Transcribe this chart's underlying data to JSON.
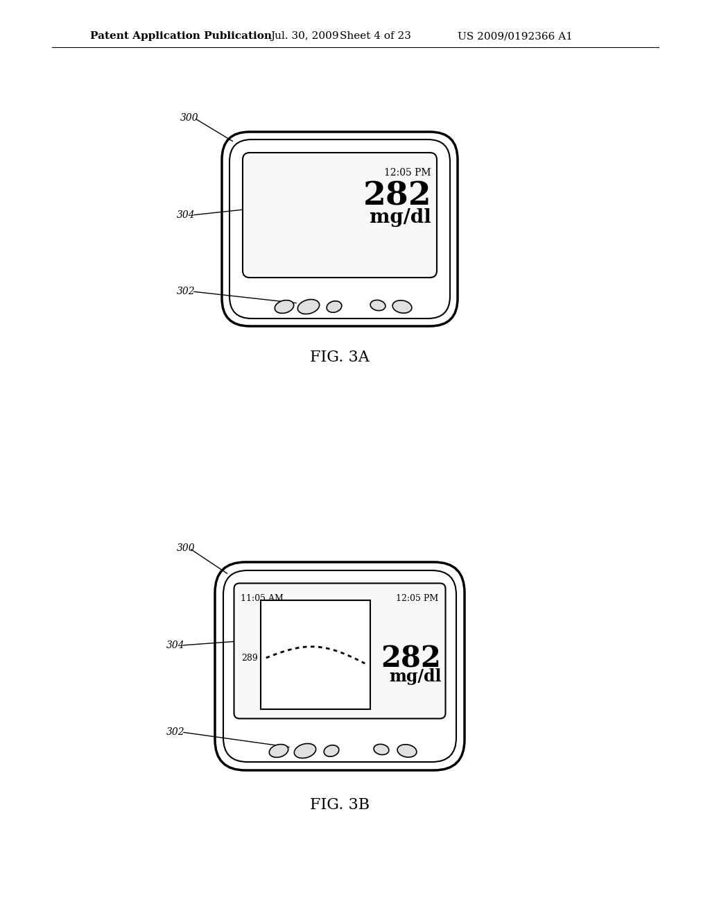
{
  "bg_color": "#ffffff",
  "header_text": "Patent Application Publication",
  "header_date": "Jul. 30, 2009",
  "header_sheet": "Sheet 4 of 23",
  "header_patent": "US 2009/0192366 A1",
  "header_fontsize": 11,
  "fig3a_label": "FIG. 3A",
  "fig3b_label": "FIG. 3B",
  "time_3a": "12:05 PM",
  "value_3a": "282",
  "unit_3a": "mg/dl",
  "time_3b_left": "11:05 AM",
  "time_3b_right": "12:05 PM",
  "graph_value_3b": "289",
  "value_3b": "282",
  "unit_3b": "mg/dl",
  "label_300": "300",
  "label_302": "302",
  "label_304": "304"
}
